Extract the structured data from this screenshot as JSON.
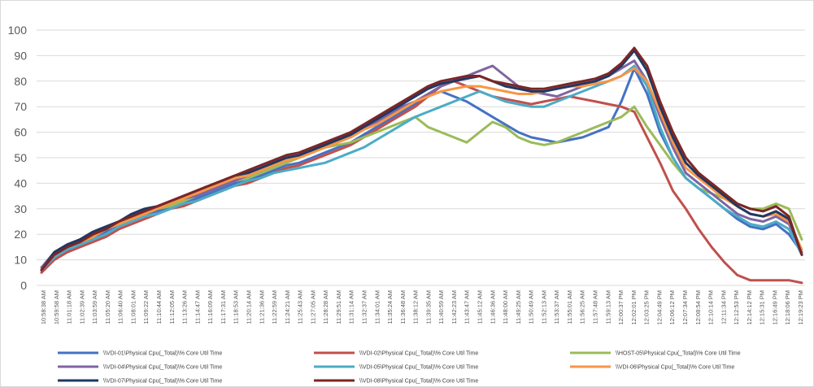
{
  "chart_data": {
    "type": "line",
    "title": "",
    "xlabel": "",
    "ylabel": "",
    "ylim": [
      0,
      100
    ],
    "yticks": [
      0,
      10,
      20,
      30,
      40,
      50,
      60,
      70,
      80,
      90,
      100
    ],
    "grid": true,
    "legend_position": "bottom",
    "x_tick_labels": [
      "10:58:38 AM",
      "10:59:58 AM",
      "11:01:18 AM",
      "11:02:39 AM",
      "11:03:59 AM",
      "11:05:20 AM",
      "11:06:40 AM",
      "11:08:01 AM",
      "11:09:22 AM",
      "11:10:44 AM",
      "11:12:05 AM",
      "11:13:26 AM",
      "11:14:47 AM",
      "11:16:09 AM",
      "11:17:31 AM",
      "11:18:53 AM",
      "11:20:14 AM",
      "11:21:36 AM",
      "11:22:59 AM",
      "11:24:21 AM",
      "11:25:43 AM",
      "11:27:05 AM",
      "11:28:28 AM",
      "11:29:51 AM",
      "11:31:14 AM",
      "11:32:37 AM",
      "11:34:01 AM",
      "11:35:24 AM",
      "11:36:48 AM",
      "11:38:12 AM",
      "11:39:35 AM",
      "11:40:59 AM",
      "11:42:23 AM",
      "11:43:47 AM",
      "11:45:12 AM",
      "11:46:36 AM",
      "11:48:00 AM",
      "11:49:25 AM",
      "11:50:49 AM",
      "11:52:13 AM",
      "11:53:37 AM",
      "11:55:01 AM",
      "11:56:25 AM",
      "11:57:48 AM",
      "11:59:13 AM",
      "12:00:37 PM",
      "12:02:01 PM",
      "12:03:25 PM",
      "12:04:49 PM",
      "12:06:12 PM",
      "12:07:34 PM",
      "12:08:54 PM",
      "12:10:14 PM",
      "12:11:34 PM",
      "12:12:53 PM",
      "12:14:12 PM",
      "12:15:31 PM",
      "12:16:49 PM",
      "12:18:06 PM",
      "12:19:23 PM"
    ],
    "series": [
      {
        "name": "\\\\VDI-01\\Physical Cpu(_Total)\\% Core Util Time",
        "color": "#4472C4",
        "values": [
          6,
          11,
          14,
          16,
          19,
          21,
          24,
          26,
          28,
          29,
          31,
          32,
          34,
          36,
          38,
          40,
          41,
          43,
          45,
          47,
          48,
          50,
          52,
          54,
          56,
          59,
          62,
          65,
          68,
          71,
          74,
          76,
          74,
          72,
          69,
          66,
          63,
          60,
          58,
          57,
          56,
          57,
          58,
          60,
          62,
          72,
          85,
          75,
          60,
          50,
          42,
          38,
          34,
          30,
          26,
          23,
          22,
          24,
          20,
          13
        ]
      },
      {
        "name": "\\\\VDI-02\\Physical Cpu(_Total)\\% Core Util Time",
        "color": "#C0504D",
        "values": [
          5,
          10,
          13,
          15,
          17,
          19,
          22,
          24,
          26,
          28,
          30,
          31,
          33,
          35,
          37,
          39,
          40,
          42,
          44,
          46,
          47,
          49,
          51,
          53,
          55,
          58,
          61,
          64,
          67,
          70,
          74,
          78,
          80,
          78,
          76,
          74,
          73,
          72,
          71,
          72,
          73,
          74,
          73,
          72,
          71,
          70,
          68,
          58,
          48,
          37,
          30,
          22,
          15,
          9,
          4,
          2,
          2,
          2,
          2,
          1
        ]
      },
      {
        "name": "\\\\HOST-05\\Physical Cpu(_Total)\\% Core Util Time",
        "color": "#9BBB59",
        "values": [
          6,
          12,
          15,
          17,
          19,
          22,
          24,
          26,
          28,
          30,
          31,
          33,
          35,
          37,
          39,
          41,
          42,
          44,
          46,
          48,
          50,
          52,
          54,
          55,
          56,
          58,
          60,
          62,
          64,
          66,
          62,
          60,
          58,
          56,
          60,
          64,
          62,
          58,
          56,
          55,
          56,
          58,
          60,
          62,
          64,
          66,
          70,
          62,
          55,
          48,
          42,
          38,
          36,
          34,
          32,
          30,
          30,
          32,
          30,
          18
        ]
      },
      {
        "name": "\\\\VDI-04\\Physical Cpu(_Total)\\% Core Util Time",
        "color": "#8064A2",
        "values": [
          7,
          13,
          16,
          18,
          21,
          23,
          25,
          27,
          29,
          30,
          32,
          34,
          35,
          37,
          39,
          41,
          43,
          45,
          47,
          49,
          51,
          53,
          55,
          57,
          59,
          62,
          64,
          67,
          70,
          72,
          75,
          78,
          80,
          82,
          84,
          86,
          82,
          78,
          76,
          75,
          74,
          76,
          78,
          80,
          82,
          85,
          88,
          80,
          66,
          54,
          44,
          40,
          36,
          32,
          28,
          26,
          25,
          27,
          24,
          12
        ]
      },
      {
        "name": "\\\\VDI-05\\Physical Cpu(_Total)\\% Core Util Time",
        "color": "#4BACC6",
        "values": [
          6,
          11,
          14,
          16,
          18,
          20,
          23,
          25,
          27,
          28,
          30,
          32,
          33,
          35,
          37,
          39,
          41,
          42,
          44,
          45,
          46,
          47,
          48,
          50,
          52,
          54,
          57,
          60,
          63,
          66,
          68,
          70,
          72,
          74,
          76,
          74,
          72,
          71,
          70,
          70,
          72,
          74,
          76,
          78,
          80,
          82,
          86,
          78,
          62,
          50,
          42,
          38,
          34,
          30,
          27,
          24,
          23,
          25,
          22,
          12
        ]
      },
      {
        "name": "\\\\VDI-06\\Physical Cpu(_Total)\\% Core Util Time",
        "color": "#F79646",
        "values": [
          6,
          12,
          15,
          17,
          19,
          22,
          24,
          26,
          28,
          30,
          32,
          34,
          36,
          38,
          40,
          42,
          43,
          45,
          47,
          49,
          50,
          52,
          54,
          56,
          58,
          61,
          63,
          66,
          69,
          72,
          74,
          76,
          77,
          78,
          78,
          77,
          76,
          75,
          75,
          76,
          77,
          78,
          78,
          79,
          80,
          82,
          85,
          80,
          68,
          56,
          46,
          42,
          38,
          34,
          31,
          28,
          27,
          28,
          25,
          14
        ]
      },
      {
        "name": "\\\\VDI-07\\Physical Cpu(_Total)\\% Core Util Time",
        "color": "#1F3864",
        "values": [
          6,
          13,
          16,
          18,
          21,
          23,
          25,
          28,
          30,
          31,
          33,
          35,
          37,
          39,
          41,
          43,
          44,
          46,
          48,
          50,
          51,
          53,
          55,
          57,
          59,
          62,
          65,
          68,
          71,
          74,
          77,
          79,
          80,
          81,
          82,
          80,
          78,
          77,
          76,
          76,
          77,
          78,
          79,
          80,
          82,
          86,
          92,
          84,
          70,
          58,
          48,
          43,
          39,
          35,
          31,
          28,
          27,
          29,
          26,
          12
        ]
      },
      {
        "name": "\\\\VDI-08\\Physical Cpu(_Total)\\% Core Util Time",
        "color": "#7B2626",
        "values": [
          6,
          12,
          15,
          17,
          20,
          22,
          25,
          27,
          29,
          31,
          33,
          35,
          37,
          39,
          41,
          43,
          45,
          47,
          49,
          51,
          52,
          54,
          56,
          58,
          60,
          63,
          66,
          69,
          72,
          75,
          78,
          80,
          81,
          82,
          82,
          80,
          79,
          78,
          77,
          77,
          78,
          79,
          80,
          81,
          83,
          87,
          93,
          86,
          72,
          60,
          50,
          44,
          40,
          36,
          32,
          30,
          29,
          31,
          27,
          12
        ]
      }
    ]
  }
}
